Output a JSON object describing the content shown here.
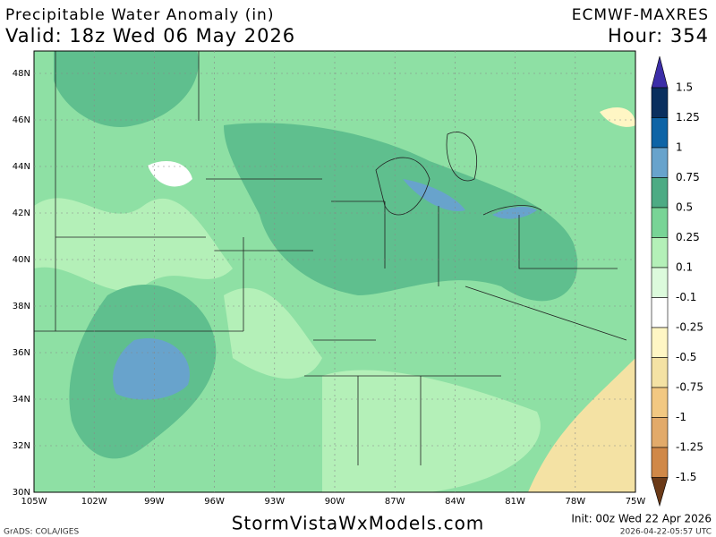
{
  "header": {
    "title": "Precipitable Water Anomaly (in)",
    "valid": "Valid: 18z Wed 06 May 2026",
    "model": "ECMWF-MAXRES",
    "hour": "Hour: 354"
  },
  "map": {
    "lat_labels": [
      "48N",
      "46N",
      "44N",
      "42N",
      "40N",
      "38N",
      "36N",
      "34N",
      "32N",
      "30N"
    ],
    "lon_labels": [
      "105W",
      "102W",
      "99W",
      "96W",
      "93W",
      "90W",
      "87W",
      "84W",
      "81W",
      "78W",
      "75W"
    ]
  },
  "colorbar": {
    "levels": [
      "1.5",
      "1.25",
      "1",
      "0.75",
      "0.5",
      "0.25",
      "0.1",
      "-0.1",
      "-0.25",
      "-0.5",
      "-0.75",
      "-1",
      "-1.25",
      "-1.5"
    ],
    "colors": [
      "#3c2ea8",
      "#0a2f5e",
      "#0e64a6",
      "#68a3cc",
      "#4dab84",
      "#78d496",
      "#b4f0b8",
      "#dcfadc",
      "#ffffff",
      "#fff6c4",
      "#f4e2a4",
      "#f2c882",
      "#e2aa6a",
      "#d08848",
      "#6b3a18"
    ]
  },
  "footer": {
    "site": "StormVistaWxModels.com",
    "init": "Init: 00z Wed 22 Apr 2026",
    "credit": "GrADS: COLA/IGES",
    "stamp": "2026-04-22-05:57 UTC"
  }
}
